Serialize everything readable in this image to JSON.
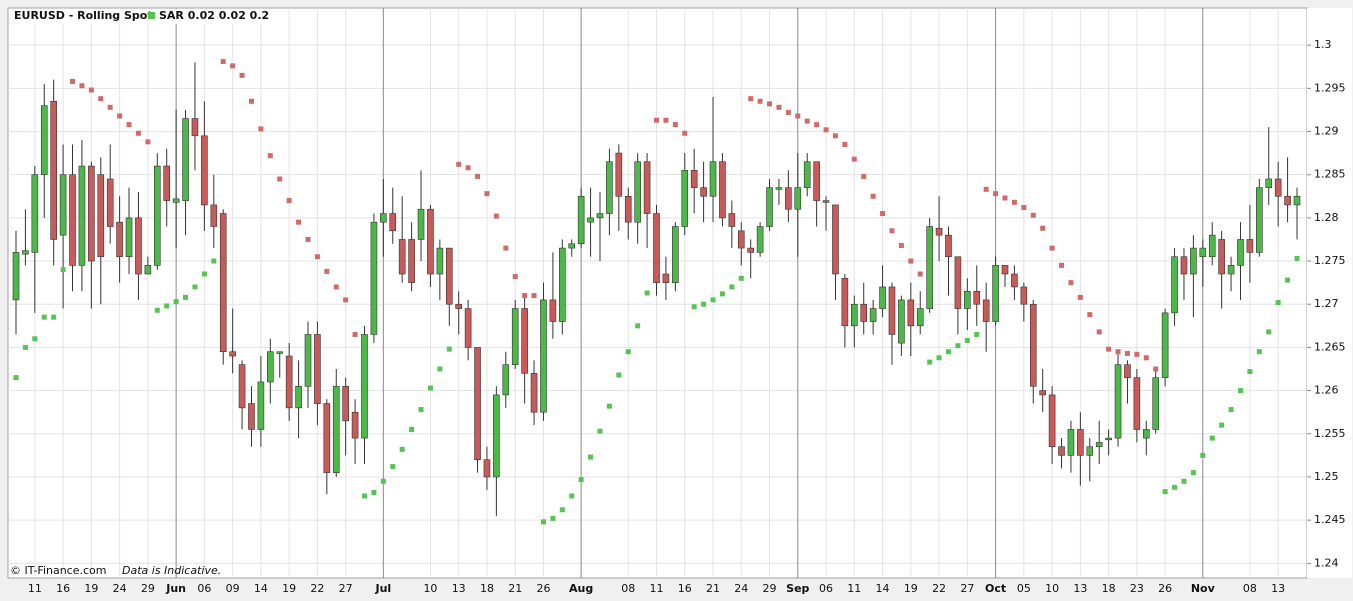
{
  "chart_data": {
    "type": "candlestick",
    "title": "EURUSD - Rolling Spot",
    "credit": "© IT-Finance.com",
    "note": "Data is Indicative.",
    "up_color": "#4cb848",
    "down_color": "#c85a5a",
    "ylim": [
      1.2383,
      1.3043
    ],
    "yticks": [
      1.24,
      1.245,
      1.25,
      1.255,
      1.26,
      1.265,
      1.27,
      1.275,
      1.28,
      1.285,
      1.29,
      1.295,
      1.3
    ],
    "grid": true,
    "categories": [
      null,
      null,
      "11",
      null,
      null,
      "16",
      null,
      null,
      "19",
      null,
      null,
      "24",
      null,
      null,
      "29",
      null,
      null,
      "Jun",
      null,
      null,
      "06",
      null,
      null,
      "09",
      null,
      null,
      "14",
      null,
      null,
      "19",
      null,
      null,
      "22",
      null,
      null,
      "27",
      null,
      null,
      null,
      "Jul",
      null,
      null,
      null,
      null,
      "10",
      null,
      null,
      "13",
      null,
      null,
      "18",
      null,
      null,
      "21",
      null,
      null,
      "26",
      null,
      null,
      null,
      "Aug",
      null,
      null,
      null,
      null,
      "08",
      null,
      null,
      "11",
      null,
      null,
      "16",
      null,
      null,
      "21",
      null,
      null,
      "24",
      null,
      null,
      "29",
      null,
      null,
      "Sep",
      null,
      null,
      "06",
      null,
      null,
      "11",
      null,
      null,
      "14",
      null,
      null,
      "19",
      null,
      null,
      "22",
      null,
      null,
      "27",
      null,
      null,
      "Oct",
      null,
      null,
      "05",
      null,
      null,
      "10",
      null,
      null,
      "13",
      null,
      null,
      "18",
      null,
      null,
      "23",
      null,
      null,
      "26",
      null,
      null,
      null,
      "Nov",
      null,
      null,
      null,
      null,
      "08",
      null,
      null,
      "13",
      null,
      null
    ],
    "open": [
      1.2705,
      1.2758,
      1.276,
      1.285,
      1.2935,
      1.278,
      1.285,
      1.2745,
      1.286,
      1.285,
      1.2845,
      1.2795,
      1.2755,
      1.28,
      1.2735,
      1.2745,
      1.286,
      1.2818,
      1.282,
      1.2915,
      1.2895,
      1.2815,
      1.2805,
      1.2645,
      1.263,
      1.2585,
      1.2555,
      1.261,
      1.2643,
      1.264,
      1.258,
      1.2605,
      1.2665,
      1.2585,
      1.2505,
      1.2605,
      1.2575,
      1.2545,
      1.2665,
      1.2795,
      1.2805,
      1.2775,
      1.2775,
      1.2775,
      1.281,
      1.2735,
      1.2765,
      1.27,
      1.2695,
      1.265,
      1.252,
      1.25,
      1.2595,
      1.263,
      1.2695,
      1.262,
      1.2575,
      1.2705,
      1.268,
      1.2765,
      1.277,
      1.2795,
      1.28,
      1.2805,
      1.2875,
      1.2825,
      1.2795,
      1.2865,
      1.2805,
      1.2735,
      1.2725,
      1.279,
      1.2855,
      1.2835,
      1.2825,
      1.2865,
      1.2805,
      1.2785,
      1.2765,
      1.276,
      1.279,
      1.2833,
      1.2835,
      1.281,
      1.2835,
      1.2865,
      1.282,
      1.2815,
      1.273,
      1.2675,
      1.27,
      1.268,
      1.2695,
      1.272,
      1.2655,
      1.2705,
      1.2675,
      1.2695,
      1.2788,
      1.278,
      1.2755,
      1.2695,
      1.2715,
      1.2705,
      1.268,
      1.2745,
      1.2735,
      1.272,
      1.27,
      1.26,
      1.2595,
      1.2535,
      1.2525,
      1.2555,
      1.2525,
      1.2535,
      1.2543,
      1.2545,
      1.263,
      1.2615,
      1.2545,
      1.2555,
      1.2615,
      1.269,
      1.2755,
      1.2735,
      1.2755,
      1.2755,
      1.2775,
      1.2735,
      1.2745,
      1.2775,
      1.276,
      1.2835,
      1.2845,
      1.2825,
      1.2815
    ],
    "high": [
      1.2785,
      1.281,
      1.286,
      1.2955,
      1.296,
      1.2885,
      1.2885,
      1.289,
      1.2865,
      1.287,
      1.2885,
      1.2825,
      1.2835,
      1.283,
      1.2755,
      1.2875,
      1.288,
      1.2925,
      1.2925,
      1.298,
      1.2935,
      1.285,
      1.281,
      1.2695,
      1.2635,
      1.2605,
      1.264,
      1.266,
      1.2645,
      1.2655,
      1.2635,
      1.268,
      1.268,
      1.259,
      1.2625,
      1.2615,
      1.259,
      1.2675,
      1.2805,
      1.2845,
      1.2835,
      1.2825,
      1.2795,
      1.2855,
      1.2815,
      1.2775,
      1.2765,
      1.2715,
      1.2705,
      1.265,
      1.2535,
      1.2605,
      1.2645,
      1.2705,
      1.271,
      1.2635,
      1.2725,
      1.276,
      1.2775,
      1.2775,
      1.2835,
      1.2835,
      1.283,
      1.288,
      1.2885,
      1.2835,
      1.2875,
      1.2875,
      1.2815,
      1.2755,
      1.2795,
      1.2875,
      1.288,
      1.2865,
      1.294,
      1.2875,
      1.282,
      1.2795,
      1.2775,
      1.2795,
      1.2845,
      1.2845,
      1.2855,
      1.2875,
      1.2875,
      1.2865,
      1.2825,
      1.2815,
      1.2735,
      1.271,
      1.2725,
      1.2705,
      1.2745,
      1.2725,
      1.271,
      1.2725,
      1.2715,
      1.28,
      1.2825,
      1.279,
      1.2755,
      1.273,
      1.2745,
      1.2725,
      1.2755,
      1.2745,
      1.2745,
      1.2725,
      1.2705,
      1.2625,
      1.2605,
      1.2545,
      1.2565,
      1.2575,
      1.2545,
      1.2565,
      1.2555,
      1.2645,
      1.2635,
      1.2625,
      1.2565,
      1.2625,
      1.2695,
      1.2765,
      1.2765,
      1.278,
      1.2775,
      1.2795,
      1.2785,
      1.2755,
      1.2795,
      1.2815,
      1.2845,
      1.2905,
      1.2865,
      1.287,
      1.2835
    ],
    "low": [
      1.2665,
      1.2745,
      1.269,
      1.28,
      1.2745,
      1.2695,
      1.2715,
      1.2715,
      1.2695,
      1.27,
      1.277,
      1.2725,
      1.2735,
      1.2705,
      1.2735,
      1.274,
      1.279,
      1.2765,
      1.278,
      1.2855,
      1.2785,
      1.2765,
      1.263,
      1.262,
      1.2555,
      1.2535,
      1.2535,
      1.2585,
      1.2615,
      1.2565,
      1.2545,
      1.258,
      1.256,
      1.248,
      1.25,
      1.2525,
      1.2515,
      1.2515,
      1.2655,
      1.2755,
      1.277,
      1.2725,
      1.2715,
      1.275,
      1.272,
      1.2705,
      1.2675,
      1.2665,
      1.2635,
      1.2505,
      1.2485,
      1.2455,
      1.258,
      1.2625,
      1.2585,
      1.256,
      1.2565,
      1.266,
      1.2665,
      1.2755,
      1.2765,
      1.2755,
      1.275,
      1.278,
      1.2785,
      1.2775,
      1.277,
      1.2765,
      1.271,
      1.2705,
      1.2715,
      1.278,
      1.2805,
      1.2795,
      1.2795,
      1.279,
      1.2765,
      1.2745,
      1.273,
      1.2755,
      1.2785,
      1.2815,
      1.2795,
      1.2755,
      1.2825,
      1.279,
      1.2785,
      1.2705,
      1.265,
      1.265,
      1.2665,
      1.2665,
      1.2685,
      1.263,
      1.264,
      1.264,
      1.2665,
      1.269,
      1.275,
      1.271,
      1.2665,
      1.267,
      1.2675,
      1.2645,
      1.2675,
      1.272,
      1.2705,
      1.268,
      1.2585,
      1.2575,
      1.2515,
      1.251,
      1.2505,
      1.249,
      1.2495,
      1.2515,
      1.2525,
      1.2535,
      1.2585,
      1.254,
      1.2525,
      1.255,
      1.2605,
      1.2675,
      1.2705,
      1.2685,
      1.272,
      1.2745,
      1.2695,
      1.2715,
      1.2705,
      1.2725,
      1.2755,
      1.2815,
      1.279,
      1.2795,
      1.2775
    ],
    "close": [
      1.276,
      1.2762,
      1.285,
      1.293,
      1.2775,
      1.285,
      1.2745,
      1.286,
      1.275,
      1.2755,
      1.279,
      1.2755,
      1.28,
      1.2735,
      1.2745,
      1.286,
      1.282,
      1.2822,
      1.2915,
      1.2895,
      1.2815,
      1.279,
      1.2645,
      1.264,
      1.258,
      1.2555,
      1.261,
      1.2645,
      1.2645,
      1.258,
      1.2605,
      1.2665,
      1.2585,
      1.2505,
      1.2605,
      1.2565,
      1.2545,
      1.2665,
      1.2795,
      1.2805,
      1.2785,
      1.2735,
      1.2725,
      1.281,
      1.2735,
      1.2765,
      1.27,
      1.2695,
      1.265,
      1.252,
      1.25,
      1.2595,
      1.263,
      1.2695,
      1.262,
      1.2575,
      1.2705,
      1.268,
      1.2765,
      1.277,
      1.2825,
      1.28,
      1.2805,
      1.2865,
      1.2825,
      1.2795,
      1.2865,
      1.2805,
      1.2725,
      1.2725,
      1.279,
      1.2855,
      1.2835,
      1.2825,
      1.2865,
      1.28,
      1.279,
      1.2765,
      1.276,
      1.279,
      1.2835,
      1.2835,
      1.281,
      1.2835,
      1.2865,
      1.282,
      1.2818,
      1.2735,
      1.2675,
      1.27,
      1.268,
      1.2695,
      1.272,
      1.2665,
      1.2705,
      1.2675,
      1.2695,
      1.279,
      1.278,
      1.2755,
      1.2695,
      1.2715,
      1.27,
      1.268,
      1.2745,
      1.2735,
      1.272,
      1.27,
      1.2605,
      1.2595,
      1.2535,
      1.2525,
      1.2555,
      1.2525,
      1.2535,
      1.254,
      1.2545,
      1.263,
      1.2615,
      1.2555,
      1.2555,
      1.2615,
      1.269,
      1.2755,
      1.2735,
      1.2765,
      1.2765,
      1.278,
      1.2735,
      1.2745,
      1.2775,
      1.276,
      1.2835,
      1.2845,
      1.2825,
      1.2815,
      1.2825
    ],
    "sar": {
      "name": "SAR 0.02 0.02 0.2",
      "below_color": "#55c455",
      "above_color": "#d06a6a",
      "values": [
        1.2615,
        1.265,
        1.266,
        1.2685,
        1.2685,
        1.274,
        1.2958,
        1.2953,
        1.2948,
        1.2938,
        1.2928,
        1.2918,
        1.2908,
        1.2898,
        1.2888,
        1.2693,
        1.2698,
        1.2703,
        1.2708,
        1.272,
        1.2735,
        1.275,
        1.2981,
        1.2976,
        1.2965,
        1.2935,
        1.2903,
        1.2872,
        1.2845,
        1.282,
        1.2795,
        1.2775,
        1.2755,
        1.2738,
        1.272,
        1.2705,
        1.2665,
        1.2478,
        1.2482,
        1.2495,
        1.2512,
        1.2532,
        1.2555,
        1.2578,
        1.2603,
        1.2625,
        1.2648,
        1.2862,
        1.2858,
        1.2848,
        1.2828,
        1.2802,
        1.2765,
        1.2732,
        1.271,
        1.271,
        1.2448,
        1.2452,
        1.2462,
        1.2478,
        1.2497,
        1.2523,
        1.2553,
        1.2582,
        1.2618,
        1.2645,
        1.2675,
        1.2713,
        1.2913,
        1.2913,
        1.2908,
        1.2898,
        1.2697,
        1.27,
        1.2705,
        1.2712,
        1.272,
        1.273,
        1.2938,
        1.2935,
        1.2932,
        1.2928,
        1.2922,
        1.2918,
        1.2912,
        1.2908,
        1.2902,
        1.2895,
        1.2885,
        1.2868,
        1.2848,
        1.2825,
        1.2805,
        1.2785,
        1.2768,
        1.275,
        1.2735,
        1.2633,
        1.2638,
        1.2645,
        1.2652,
        1.2658,
        1.2665,
        1.2833,
        1.2828,
        1.2823,
        1.2818,
        1.2812,
        1.2803,
        1.2788,
        1.2765,
        1.2745,
        1.2725,
        1.2708,
        1.2688,
        1.2668,
        1.2648,
        1.2645,
        1.2643,
        1.2642,
        1.2638,
        1.2625,
        1.2483,
        1.2488,
        1.2495,
        1.2505,
        1.2525,
        1.2545,
        1.256,
        1.2578,
        1.26,
        1.2622,
        1.2645,
        1.2668,
        1.2702,
        1.2728,
        1.2753
      ]
    }
  }
}
